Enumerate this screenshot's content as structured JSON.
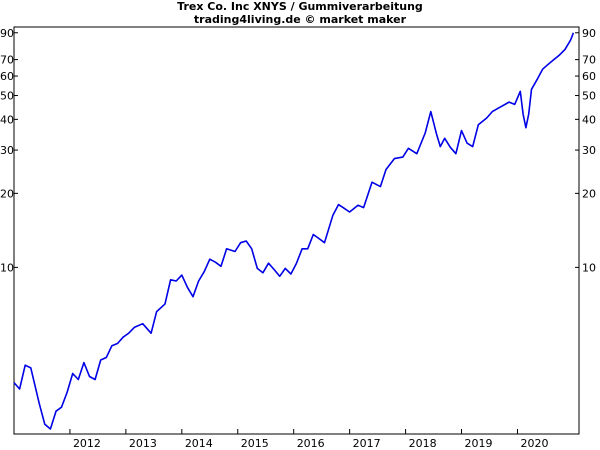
{
  "chart_data": {
    "type": "line",
    "title": "Trex Co. Inc XNYS / Gummiverarbeitung",
    "subtitle": "trading4living.de © market maker",
    "xlabel": "",
    "ylabel": "",
    "y_scale": "log",
    "ylim": [
      2.1,
      95
    ],
    "xlim": [
      2011.0,
      2021.1
    ],
    "grid": false,
    "y_ticks": [
      10,
      20,
      30,
      40,
      50,
      60,
      70,
      90
    ],
    "y_tick_labels_left": [
      "10",
      "20",
      "30",
      "40",
      "50",
      "60",
      "70",
      "90"
    ],
    "y_tick_labels_right": [
      "10",
      "20",
      "30",
      "40",
      "50",
      "60",
      "70",
      "90"
    ],
    "x_ticks": [
      "2012",
      "2013",
      "2014",
      "2015",
      "2016",
      "2017",
      "2018",
      "2019",
      "2020"
    ],
    "series": [
      {
        "color": "#0000e6",
        "x": [
          2011.0,
          2011.1,
          2011.2,
          2011.3,
          2011.45,
          2011.55,
          2011.65,
          2011.75,
          2011.85,
          2011.95,
          2012.05,
          2012.15,
          2012.25,
          2012.35,
          2012.45,
          2012.55,
          2012.65,
          2012.75,
          2012.85,
          2012.95,
          2013.05,
          2013.15,
          2013.3,
          2013.45,
          2013.55,
          2013.7,
          2013.8,
          2013.9,
          2014.0,
          2014.1,
          2014.2,
          2014.3,
          2014.4,
          2014.5,
          2014.6,
          2014.7,
          2014.8,
          2014.95,
          2015.05,
          2015.15,
          2015.25,
          2015.35,
          2015.45,
          2015.55,
          2015.65,
          2015.75,
          2015.85,
          2015.95,
          2016.05,
          2016.15,
          2016.25,
          2016.35,
          2016.45,
          2016.55,
          2016.7,
          2016.8,
          2016.9,
          2017.0,
          2017.15,
          2017.25,
          2017.4,
          2017.55,
          2017.65,
          2017.8,
          2017.95,
          2018.05,
          2018.2,
          2018.35,
          2018.45,
          2018.55,
          2018.62,
          2018.7,
          2018.8,
          2018.9,
          2019.0,
          2019.1,
          2019.2,
          2019.3,
          2019.45,
          2019.55,
          2019.7,
          2019.85,
          2019.95,
          2020.05,
          2020.1,
          2020.15,
          2020.2,
          2020.25,
          2020.35,
          2020.45,
          2020.55,
          2020.65,
          2020.75,
          2020.85,
          2020.95,
          2021.0
        ],
        "y": [
          3.4,
          3.2,
          4.0,
          3.9,
          2.8,
          2.3,
          2.2,
          2.6,
          2.7,
          3.1,
          3.7,
          3.5,
          4.1,
          3.6,
          3.5,
          4.2,
          4.3,
          4.8,
          4.9,
          5.2,
          5.4,
          5.7,
          5.9,
          5.4,
          6.6,
          7.1,
          8.9,
          8.8,
          9.3,
          8.3,
          7.6,
          8.8,
          9.6,
          10.8,
          10.5,
          10.1,
          11.9,
          11.6,
          12.6,
          12.8,
          11.9,
          9.9,
          9.5,
          10.4,
          9.8,
          9.2,
          9.9,
          9.4,
          10.4,
          11.9,
          11.9,
          13.6,
          13.1,
          12.6,
          16.3,
          18.0,
          17.4,
          16.8,
          17.9,
          17.5,
          22.2,
          21.3,
          25.0,
          27.7,
          28.1,
          30.5,
          29.0,
          35.2,
          43.0,
          35.0,
          31.0,
          33.5,
          30.8,
          29.0,
          36.0,
          32.0,
          31.0,
          38.0,
          40.5,
          43.0,
          45.0,
          47.0,
          46.0,
          52.0,
          42.0,
          37.0,
          42.0,
          53.0,
          58.0,
          64.0,
          67.0,
          70.0,
          73.0,
          77.0,
          84.0,
          90.0
        ]
      }
    ]
  }
}
